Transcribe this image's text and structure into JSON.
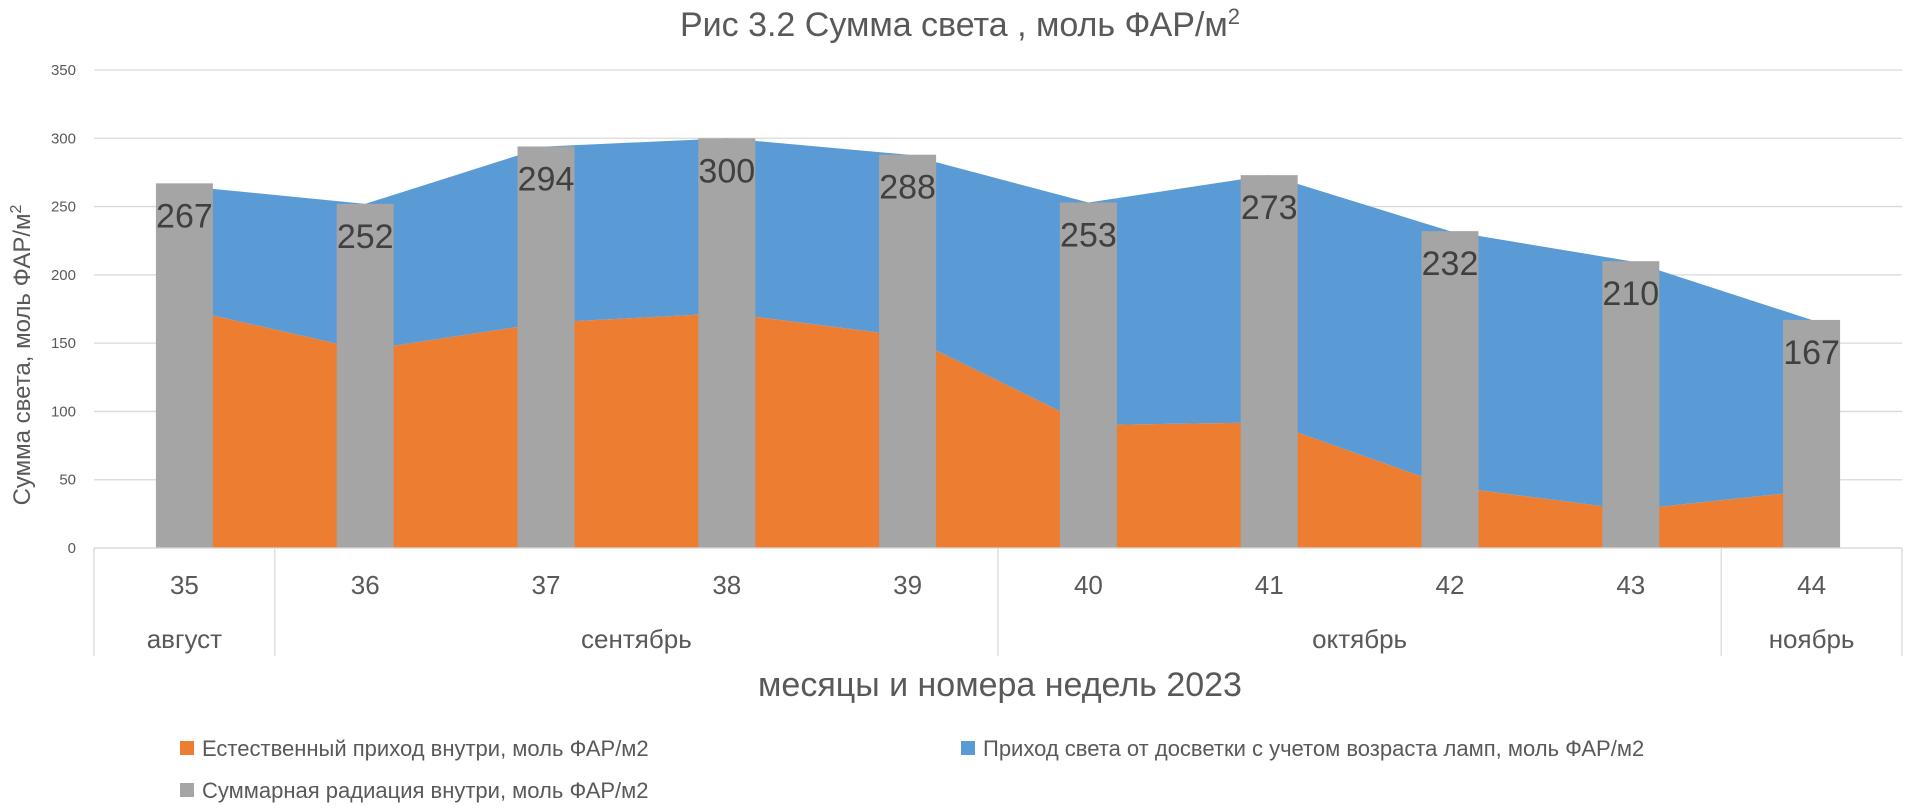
{
  "chart_data": {
    "type": "area+bar",
    "title": "Рис 3.2 Сумма света , моль ФАР/м",
    "title_superscript": "2",
    "ylabel": "Сумма света, моль ФАР/м",
    "ylabel_superscript": "2",
    "xlabel": "месяцы и номера недель 2023",
    "ylim": [
      0,
      350
    ],
    "yticks": [
      0,
      50,
      100,
      150,
      200,
      250,
      300,
      350
    ],
    "categories": [
      "35",
      "36",
      "37",
      "38",
      "39",
      "40",
      "41",
      "42",
      "43",
      "44"
    ],
    "month_groups": [
      {
        "label": "август",
        "start": 0,
        "end": 0
      },
      {
        "label": "сентябрь",
        "start": 1,
        "end": 4
      },
      {
        "label": "октябрь",
        "start": 5,
        "end": 8
      },
      {
        "label": "ноябрь",
        "start": 9,
        "end": 9
      }
    ],
    "series": [
      {
        "name": "Естественный  приход внутри, моль ФАР/м2",
        "type": "area",
        "color": "#ED7D31",
        "values": [
          175,
          145,
          165,
          172,
          155,
          90,
          92,
          45,
          28,
          42
        ]
      },
      {
        "name": "Приход света от досветки с учетом возраста ламп, моль ФАР/м2",
        "type": "area",
        "color": "#5B9BD5",
        "values": [
          90,
          107,
          129,
          128,
          133,
          163,
          181,
          187,
          182,
          125
        ]
      },
      {
        "name": "Суммарная радиация внутри, моль ФАР/м2",
        "type": "bar",
        "color": "#A5A5A5",
        "values": [
          267,
          252,
          294,
          300,
          288,
          253,
          273,
          232,
          210,
          167
        ],
        "data_labels": [
          "267",
          "252",
          "294",
          "300",
          "288",
          "253",
          "273",
          "232",
          "210",
          "167"
        ]
      }
    ]
  }
}
